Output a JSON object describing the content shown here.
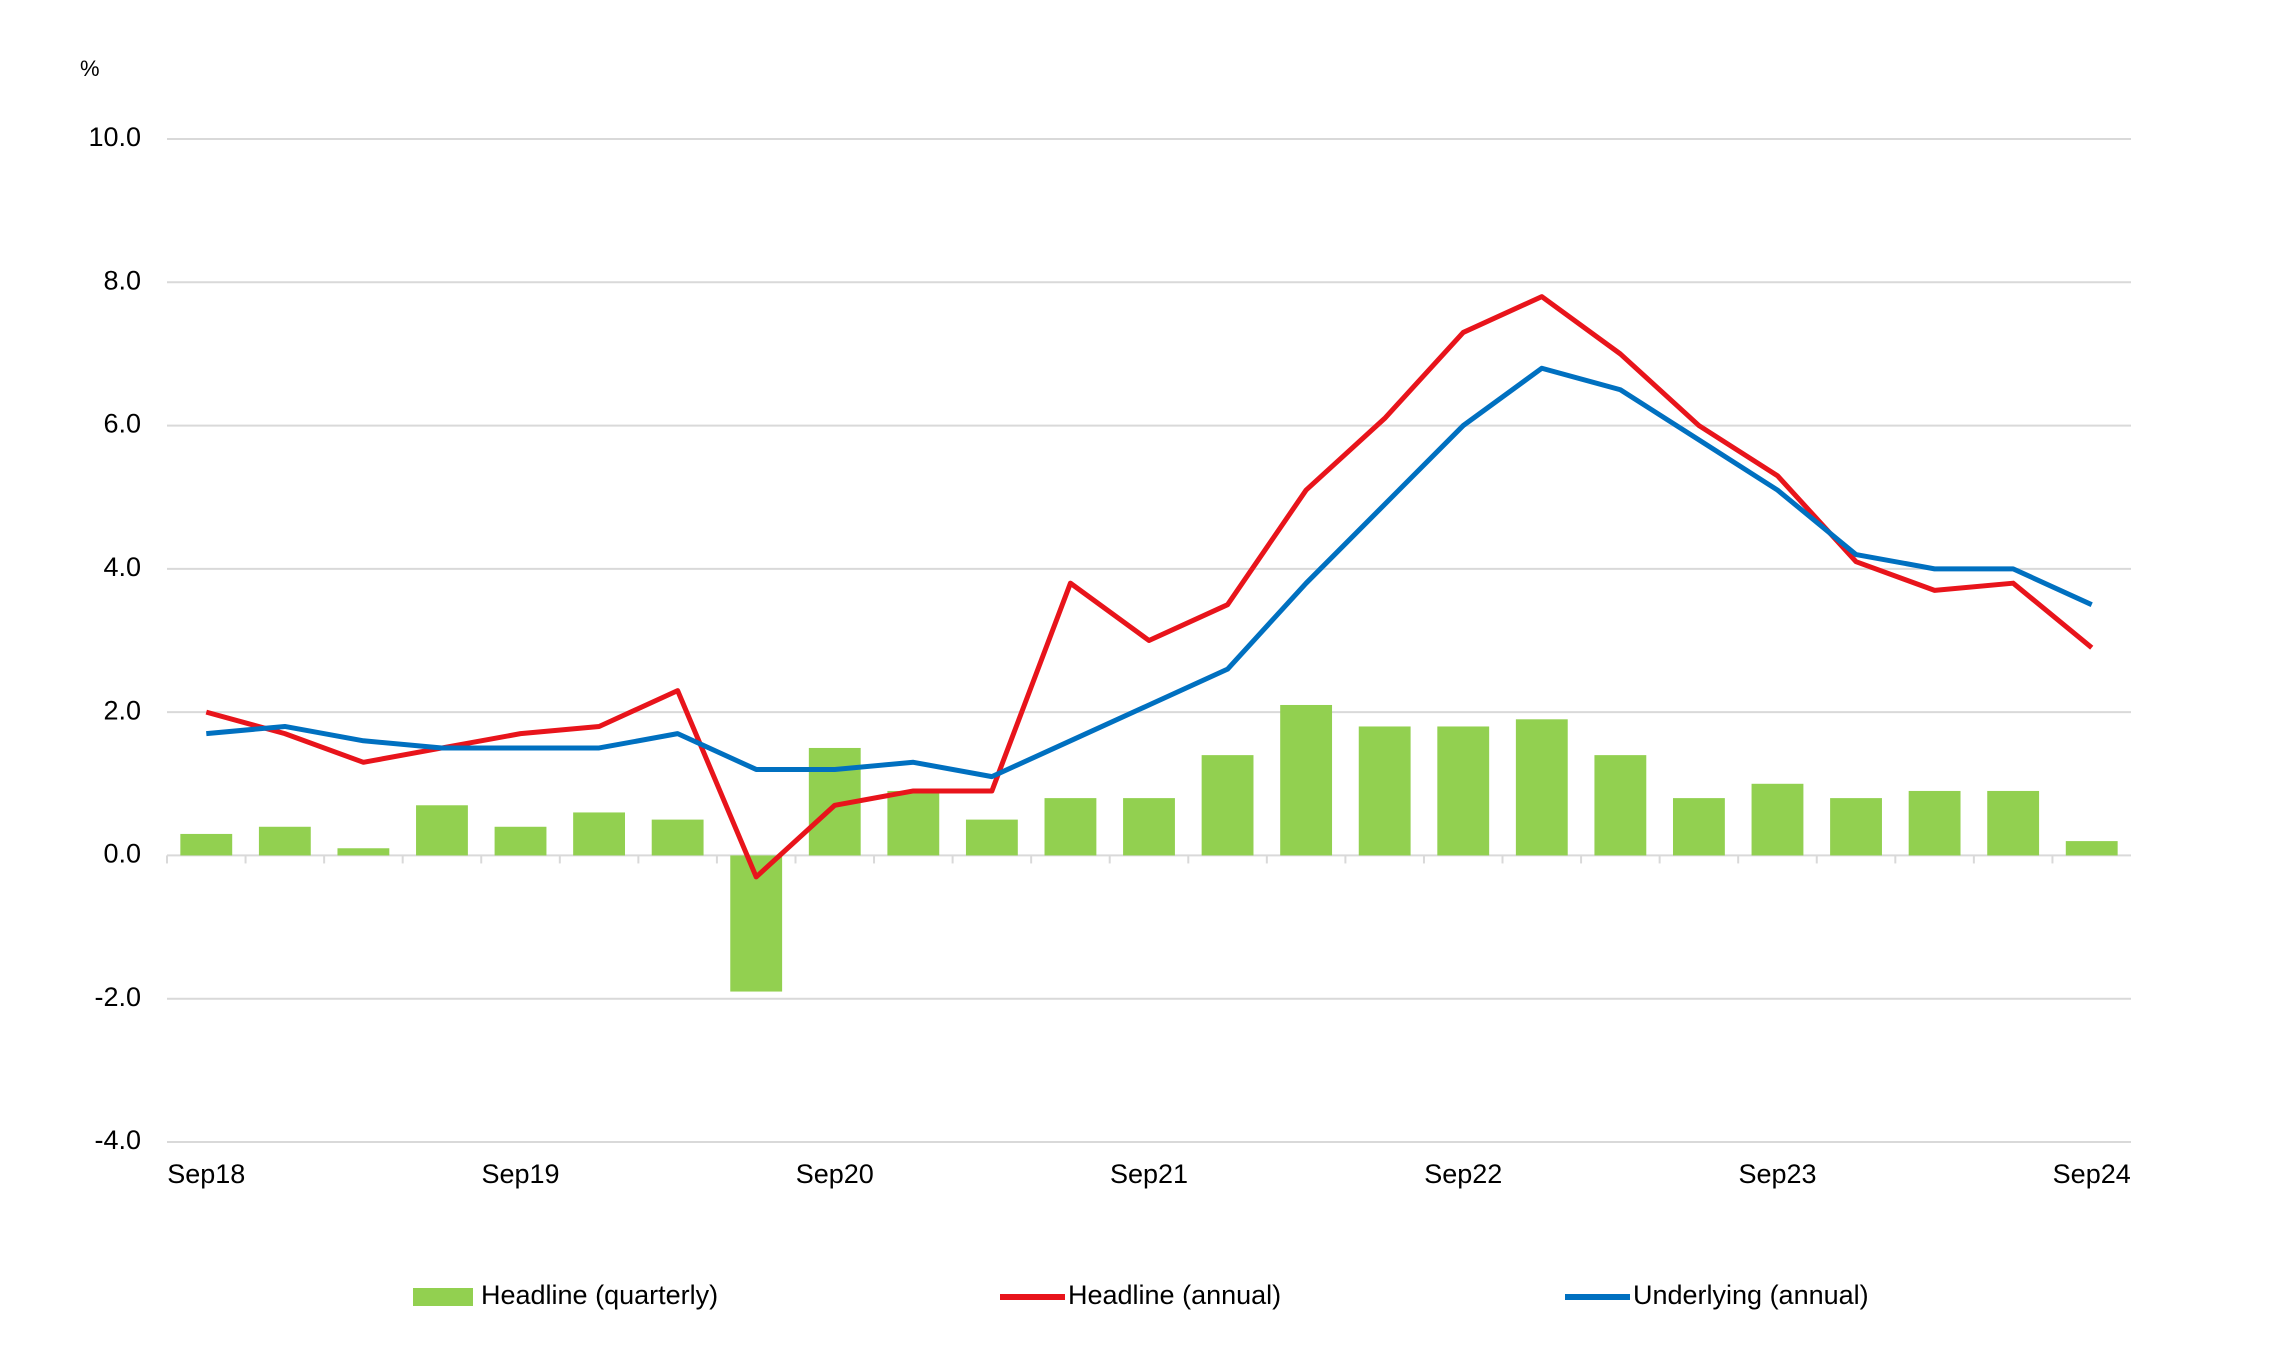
{
  "chart_data": {
    "type": "bar-line",
    "y_label": "%",
    "categories": [
      "Sep18",
      null,
      null,
      null,
      "Sep19",
      null,
      null,
      null,
      "Sep20",
      null,
      null,
      null,
      "Sep21",
      null,
      null,
      null,
      "Sep22",
      null,
      null,
      null,
      "Sep23",
      null,
      null,
      null,
      "Sep24"
    ],
    "series": [
      {
        "name": "Headline (quarterly)",
        "type": "bar",
        "color": "#92d050",
        "values": [
          0.3,
          0.4,
          0.1,
          0.7,
          0.4,
          0.6,
          0.5,
          -1.9,
          1.5,
          0.9,
          0.5,
          0.8,
          0.8,
          1.4,
          2.1,
          1.8,
          1.8,
          1.9,
          1.4,
          0.8,
          1.0,
          0.8,
          0.9,
          0.9,
          0.2
        ]
      },
      {
        "name": "Headline (annual)",
        "type": "line",
        "color": "#e8141b",
        "values": [
          2.0,
          1.7,
          1.3,
          1.5,
          1.7,
          1.8,
          2.3,
          -0.3,
          0.7,
          0.9,
          0.9,
          3.8,
          3.0,
          3.5,
          5.1,
          6.1,
          7.3,
          7.8,
          7.0,
          6.0,
          5.3,
          4.1,
          3.7,
          3.8,
          2.9
        ]
      },
      {
        "name": "Underlying (annual)",
        "type": "line",
        "color": "#0070c0",
        "values": [
          1.7,
          1.8,
          1.6,
          1.5,
          1.5,
          1.5,
          1.7,
          1.2,
          1.2,
          1.3,
          1.1,
          1.6,
          2.1,
          2.6,
          3.8,
          4.9,
          6.0,
          6.8,
          6.5,
          5.8,
          5.1,
          4.2,
          4.0,
          4.0,
          3.5
        ]
      }
    ],
    "ylim": [
      -4,
      10
    ],
    "yticks": [
      {
        "value": -4,
        "label": "-4.0"
      },
      {
        "value": -2,
        "label": "-2.0"
      },
      {
        "value": 0,
        "label": "0.0"
      },
      {
        "value": 2,
        "label": "2.0"
      },
      {
        "value": 4,
        "label": "4.0"
      },
      {
        "value": 6,
        "label": "6.0"
      },
      {
        "value": 8,
        "label": "8.0"
      },
      {
        "value": 10,
        "label": "10.0"
      }
    ],
    "grid": true,
    "legend": "bottom"
  }
}
